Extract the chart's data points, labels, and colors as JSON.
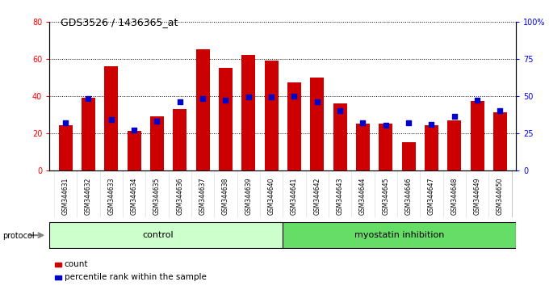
{
  "title": "GDS3526 / 1436365_at",
  "samples": [
    "GSM344631",
    "GSM344632",
    "GSM344633",
    "GSM344634",
    "GSM344635",
    "GSM344636",
    "GSM344637",
    "GSM344638",
    "GSM344639",
    "GSM344640",
    "GSM344641",
    "GSM344642",
    "GSM344643",
    "GSM344644",
    "GSM344645",
    "GSM344646",
    "GSM344647",
    "GSM344648",
    "GSM344649",
    "GSM344650"
  ],
  "counts": [
    24,
    39,
    56,
    21,
    29,
    33,
    65,
    55,
    62,
    59,
    47,
    50,
    36,
    25,
    25,
    15,
    24,
    27,
    37,
    31
  ],
  "percentile_ranks": [
    32,
    48,
    34,
    27,
    33,
    46,
    48,
    47,
    49,
    49,
    50,
    46,
    40,
    32,
    30,
    32,
    31,
    36,
    47,
    40
  ],
  "control_color": "#ccffcc",
  "myostatin_color": "#66dd66",
  "bar_color": "#cc0000",
  "dot_color": "#0000cc",
  "xtick_bg_color": "#cccccc",
  "ylim_left": [
    0,
    80
  ],
  "ylim_right": [
    0,
    100
  ],
  "yticks_left": [
    0,
    20,
    40,
    60,
    80
  ],
  "yticks_right": [
    0,
    25,
    50,
    75,
    100
  ],
  "ytick_labels_right": [
    "0",
    "25",
    "50",
    "75",
    "100%"
  ],
  "control_count": 10,
  "total_count": 20
}
